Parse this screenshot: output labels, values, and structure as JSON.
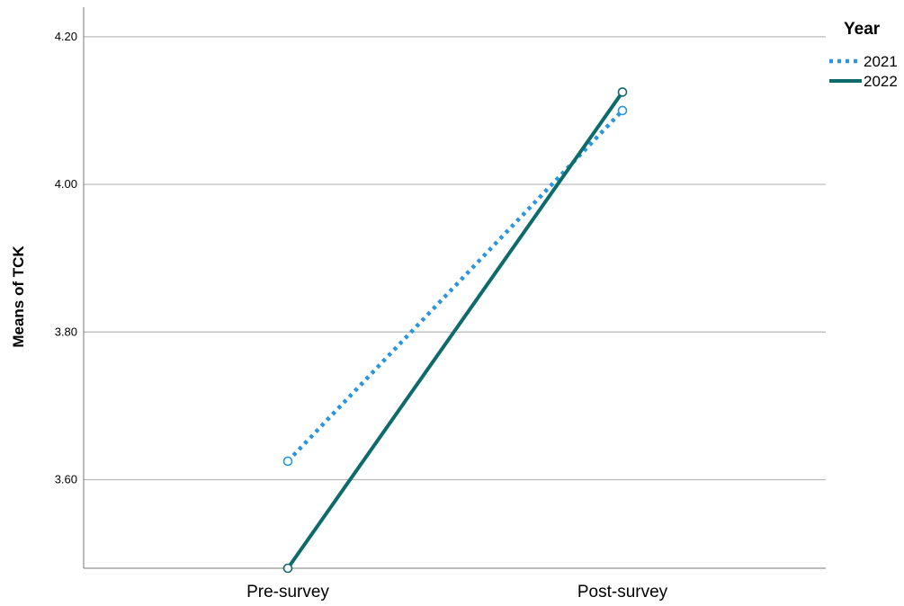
{
  "chart_data": {
    "type": "line",
    "title": "",
    "xlabel": "",
    "ylabel": "Means of TCK",
    "categories": [
      "Pre-survey",
      "Post-survey"
    ],
    "ylim": [
      3.48,
      4.24
    ],
    "yticks": [
      "3.60",
      "3.80",
      "4.00",
      "4.20"
    ],
    "ytick_values": [
      3.6,
      3.8,
      4.0,
      4.2
    ],
    "grid": "horizontal",
    "legend": {
      "title": "Year",
      "placement": "top-right"
    },
    "series": [
      {
        "name": "2021",
        "values": [
          3.625,
          4.1
        ],
        "color": "#2a95e0",
        "line_style": "dotted"
      },
      {
        "name": "2022",
        "values": [
          3.48,
          4.125
        ],
        "color": "#0e6b6b",
        "line_style": "solid"
      }
    ]
  }
}
